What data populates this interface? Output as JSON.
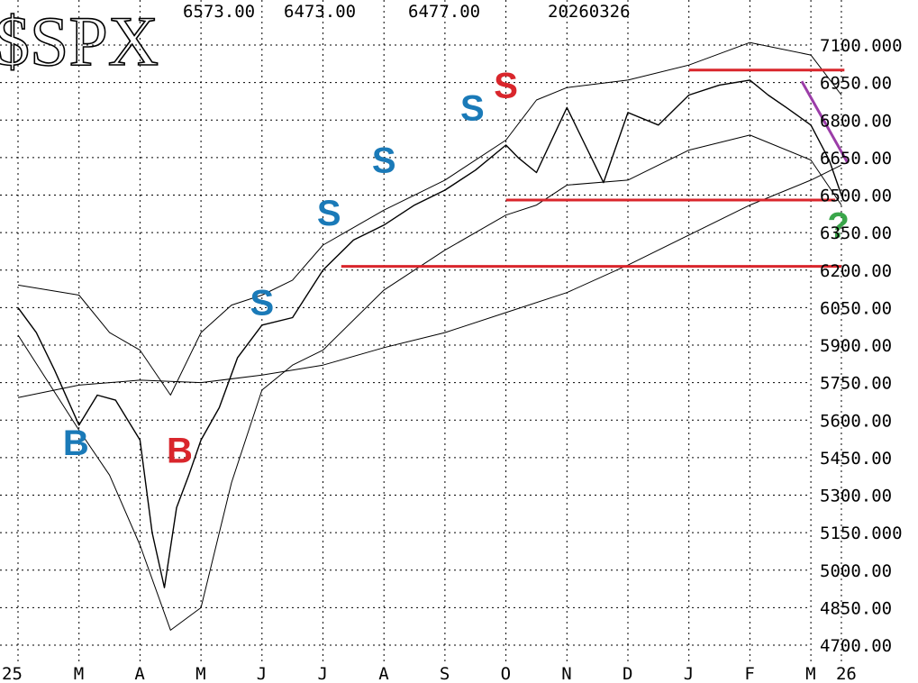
{
  "header": {
    "symbol": "$SPX",
    "high": "6573.00",
    "low": "6473.00",
    "close": "6477.00",
    "date": "20260326"
  },
  "colors": {
    "price": "#000000",
    "grid": "#000000",
    "support_line": "#d9262c",
    "downtrend_line": "#9b3da8",
    "buy_blue": "#1a7ab8",
    "sell_red": "#d9262c",
    "question": "#3aa64a"
  },
  "chart_data": {
    "type": "line",
    "title": "$SPX",
    "ylim": [
      4700,
      7150
    ],
    "y_ticks": [
      "7100.000",
      "6950.00",
      "6800.00",
      "6650.00",
      "6500.00",
      "6350.00",
      "6200.00",
      "6050.00",
      "5900.00",
      "5750.00",
      "5600.00",
      "5450.00",
      "5300.00",
      "5150.000",
      "5000.00",
      "4850.00",
      "4700.00"
    ],
    "y_tick_values": [
      7100,
      6950,
      6800,
      6650,
      6500,
      6350,
      6200,
      6050,
      5900,
      5750,
      5600,
      5450,
      5300,
      5150,
      5000,
      4850,
      4700
    ],
    "x_ticks": [
      "25",
      "M",
      "A",
      "M",
      "J",
      "J",
      "A",
      "S",
      "O",
      "N",
      "D",
      "J",
      "F",
      "M",
      "26"
    ],
    "x_tick_months": [
      0,
      1,
      2,
      3,
      4,
      5,
      6,
      7,
      8,
      9,
      10,
      11,
      12,
      13,
      13.5
    ],
    "grid": true,
    "series": [
      {
        "style": "price",
        "x": [
          0,
          0.3,
          0.6,
          1.0,
          1.3,
          1.6,
          2.0,
          2.2,
          2.4,
          2.6,
          2.8,
          3.0,
          3.3,
          3.6,
          4.0,
          4.5,
          5.0,
          5.5,
          6.0,
          6.5,
          7.0,
          7.5,
          8.0,
          8.2,
          8.5,
          9.0,
          9.3,
          9.6,
          10.0,
          10.5,
          11.0,
          11.5,
          12.0,
          12.3,
          12.6,
          13.0,
          13.3,
          13.5
        ],
        "values": [
          6050,
          5950,
          5800,
          5580,
          5700,
          5680,
          5520,
          5150,
          4930,
          5250,
          5380,
          5520,
          5650,
          5850,
          5980,
          6010,
          6200,
          6320,
          6380,
          6460,
          6520,
          6600,
          6700,
          6650,
          6590,
          6850,
          6700,
          6550,
          6830,
          6780,
          6900,
          6940,
          6960,
          6900,
          6850,
          6780,
          6640,
          6500
        ]
      },
      {
        "style": "band-upper",
        "x": [
          0,
          1.0,
          1.5,
          2.0,
          2.5,
          3.0,
          3.5,
          4.0,
          4.5,
          5.0,
          6.0,
          7.0,
          8.0,
          8.5,
          9.0,
          10.0,
          11.0,
          12.0,
          13.0,
          13.5
        ],
        "values": [
          6140,
          6100,
          5950,
          5880,
          5700,
          5950,
          6060,
          6100,
          6160,
          6300,
          6440,
          6560,
          6720,
          6880,
          6930,
          6960,
          7020,
          7110,
          7060,
          6900
        ]
      },
      {
        "style": "band-lower",
        "x": [
          0,
          1.0,
          1.5,
          2.0,
          2.5,
          3.0,
          3.5,
          4.0,
          4.5,
          5.0,
          6.0,
          7.0,
          8.0,
          8.5,
          9.0,
          10.0,
          11.0,
          12.0,
          13.0,
          13.5
        ],
        "values": [
          5940,
          5560,
          5380,
          5100,
          4760,
          4850,
          5350,
          5720,
          5820,
          5880,
          6120,
          6280,
          6420,
          6460,
          6540,
          6560,
          6680,
          6740,
          6640,
          6460
        ]
      },
      {
        "style": "ma-long",
        "x": [
          0,
          1,
          2,
          3,
          4,
          5,
          6,
          7,
          8,
          9,
          10,
          11,
          12,
          13,
          13.5
        ],
        "values": [
          5690,
          5740,
          5760,
          5750,
          5780,
          5820,
          5890,
          5950,
          6030,
          6110,
          6220,
          6340,
          6460,
          6560,
          6620
        ]
      }
    ],
    "support_lines": [
      {
        "value": 7000,
        "x_start": 11.0,
        "x_end": 13.55
      },
      {
        "value": 6480,
        "x_start": 8.0,
        "x_end": 13.4
      },
      {
        "value": 6215,
        "x_start": 5.3,
        "x_end": 13.5
      }
    ],
    "downtrend_line": {
      "x": [
        12.85,
        13.6
      ],
      "values": [
        6955,
        6630
      ]
    },
    "annotations": [
      {
        "text": "B",
        "color": "blue",
        "x": 0.95,
        "y": 5460
      },
      {
        "text": "B",
        "color": "red",
        "x": 2.65,
        "y": 5430
      },
      {
        "text": "S",
        "color": "blue",
        "x": 4.0,
        "y": 6020
      },
      {
        "text": "S",
        "color": "blue",
        "x": 5.1,
        "y": 6380
      },
      {
        "text": "S",
        "color": "blue",
        "x": 6.0,
        "y": 6590
      },
      {
        "text": "S",
        "color": "blue",
        "x": 7.45,
        "y": 6800
      },
      {
        "text": "S",
        "color": "red",
        "x": 8.0,
        "y": 6890
      },
      {
        "text": "?",
        "color": "green",
        "x": 13.45,
        "y": 6330
      }
    ]
  }
}
